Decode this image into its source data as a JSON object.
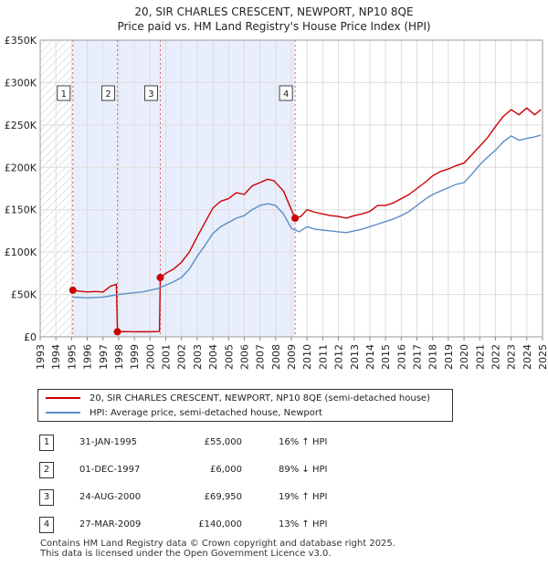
{
  "chart_data": {
    "type": "line",
    "title": "20, SIR CHARLES CRESCENT, NEWPORT, NP10 8QE",
    "subtitle": "Price paid vs. HM Land Registry's House Price Index (HPI)",
    "xlim": [
      1993,
      2025
    ],
    "ylim": [
      0,
      350000
    ],
    "x_ticks": [
      "1993",
      "1994",
      "1995",
      "1996",
      "1997",
      "1998",
      "1999",
      "2000",
      "2001",
      "2002",
      "2003",
      "2004",
      "2005",
      "2006",
      "2007",
      "2008",
      "2009",
      "2010",
      "2011",
      "2012",
      "2013",
      "2014",
      "2015",
      "2016",
      "2017",
      "2018",
      "2019",
      "2020",
      "2021",
      "2022",
      "2023",
      "2024",
      "2025"
    ],
    "y_ticks": [
      {
        "value": 0,
        "label": "£0"
      },
      {
        "value": 50000,
        "label": "£50K"
      },
      {
        "value": 100000,
        "label": "£100K"
      },
      {
        "value": 150000,
        "label": "£150K"
      },
      {
        "value": 200000,
        "label": "£200K"
      },
      {
        "value": 250000,
        "label": "£250K"
      },
      {
        "value": 300000,
        "label": "£300K"
      },
      {
        "value": 350000,
        "label": "£350K"
      }
    ],
    "series": [
      {
        "name": "20, SIR CHARLES CRESCENT, NEWPORT, NP10 8QE (semi-detached house)",
        "color": "#cc0000",
        "x": [
          1995.08,
          1995.5,
          1996.0,
          1996.5,
          1997.0,
          1997.5,
          1997.85,
          1997.92,
          1998.3,
          1999.0,
          1999.5,
          2000.0,
          2000.6,
          2000.65,
          2001.0,
          2001.5,
          2002.0,
          2002.5,
          2003.0,
          2003.5,
          2004.0,
          2004.5,
          2005.0,
          2005.5,
          2006.0,
          2006.5,
          2007.0,
          2007.5,
          2007.9,
          2008.5,
          2009.0,
          2009.24,
          2009.6,
          2010.0,
          2010.5,
          2011.0,
          2011.5,
          2012.0,
          2012.5,
          2013.0,
          2013.5,
          2014.0,
          2014.5,
          2015.0,
          2015.5,
          2016.0,
          2016.5,
          2017.0,
          2017.5,
          2018.0,
          2018.5,
          2019.0,
          2019.5,
          2020.0,
          2020.5,
          2021.0,
          2021.5,
          2022.0,
          2022.5,
          2023.0,
          2023.5,
          2024.0,
          2024.5,
          2024.9
        ],
        "values": [
          55000,
          54000,
          53000,
          53500,
          53000,
          60000,
          62000,
          6000,
          6200,
          6000,
          6100,
          6000,
          6300,
          69950,
          75000,
          80000,
          88000,
          100000,
          118000,
          135000,
          152000,
          160000,
          163000,
          170000,
          168000,
          178000,
          182000,
          186000,
          184000,
          172000,
          150000,
          140000,
          142000,
          150000,
          147000,
          145000,
          143000,
          142000,
          140000,
          143000,
          145000,
          148000,
          155000,
          155000,
          158000,
          163000,
          168000,
          175000,
          182000,
          190000,
          195000,
          198000,
          202000,
          205000,
          215000,
          225000,
          235000,
          248000,
          260000,
          268000,
          262000,
          270000,
          262000,
          268000
        ]
      },
      {
        "name": "HPI: Average price, semi-detached house, Newport",
        "color": "#5b8fc7",
        "x": [
          1995.08,
          1995.5,
          1996.0,
          1996.5,
          1997.0,
          1997.5,
          1998.0,
          1998.5,
          1999.0,
          1999.5,
          2000.0,
          2000.5,
          2001.0,
          2001.5,
          2002.0,
          2002.5,
          2003.0,
          2003.5,
          2004.0,
          2004.5,
          2005.0,
          2005.5,
          2006.0,
          2006.5,
          2007.0,
          2007.5,
          2008.0,
          2008.5,
          2009.0,
          2009.5,
          2010.0,
          2010.5,
          2011.0,
          2011.5,
          2012.0,
          2012.5,
          2013.0,
          2013.5,
          2014.0,
          2014.5,
          2015.0,
          2015.5,
          2016.0,
          2016.5,
          2017.0,
          2017.5,
          2018.0,
          2018.5,
          2019.0,
          2019.5,
          2020.0,
          2020.5,
          2021.0,
          2021.5,
          2022.0,
          2022.5,
          2023.0,
          2023.5,
          2024.0,
          2024.5,
          2024.9
        ],
        "values": [
          47000,
          46500,
          46000,
          46500,
          47000,
          48500,
          50000,
          51000,
          52000,
          53000,
          55000,
          57000,
          61000,
          65000,
          70000,
          80000,
          95000,
          108000,
          122000,
          130000,
          135000,
          140000,
          143000,
          150000,
          155000,
          157000,
          155000,
          145000,
          128000,
          124000,
          130000,
          127000,
          126000,
          125000,
          124000,
          123000,
          125000,
          127000,
          130000,
          133000,
          136000,
          139000,
          143000,
          148000,
          155000,
          162000,
          168000,
          172000,
          176000,
          180000,
          182000,
          192000,
          203000,
          212000,
          220000,
          230000,
          237000,
          232000,
          234000,
          236000,
          238000
        ]
      }
    ],
    "markers": [
      {
        "label": "1",
        "x": 1995.08,
        "value": 55000
      },
      {
        "label": "2",
        "x": 1997.92,
        "value": 6000
      },
      {
        "label": "3",
        "x": 2000.65,
        "value": 69950
      },
      {
        "label": "4",
        "x": 2009.24,
        "value": 140000
      }
    ],
    "hatch_range": [
      1993,
      1995.08
    ],
    "shade_range": [
      1995.08,
      2009.24
    ],
    "legend_position": "below"
  },
  "legend": {
    "item1": "20, SIR CHARLES CRESCENT, NEWPORT, NP10 8QE (semi-detached house)",
    "item2": "HPI: Average price, semi-detached house, Newport",
    "item1_color": "#cc0000",
    "item2_color": "#5b8fc7"
  },
  "sales": [
    {
      "num": "1",
      "date": "31-JAN-1995",
      "price": "£55,000",
      "hpi": "16% ↑ HPI"
    },
    {
      "num": "2",
      "date": "01-DEC-1997",
      "price": "£6,000",
      "hpi": "89% ↓ HPI"
    },
    {
      "num": "3",
      "date": "24-AUG-2000",
      "price": "£69,950",
      "hpi": "19% ↑ HPI"
    },
    {
      "num": "4",
      "date": "27-MAR-2009",
      "price": "£140,000",
      "hpi": "13% ↑ HPI"
    }
  ],
  "footer": {
    "line1": "Contains HM Land Registry data © Crown copyright and database right 2025.",
    "line2": "This data is licensed under the Open Government Licence v3.0."
  }
}
